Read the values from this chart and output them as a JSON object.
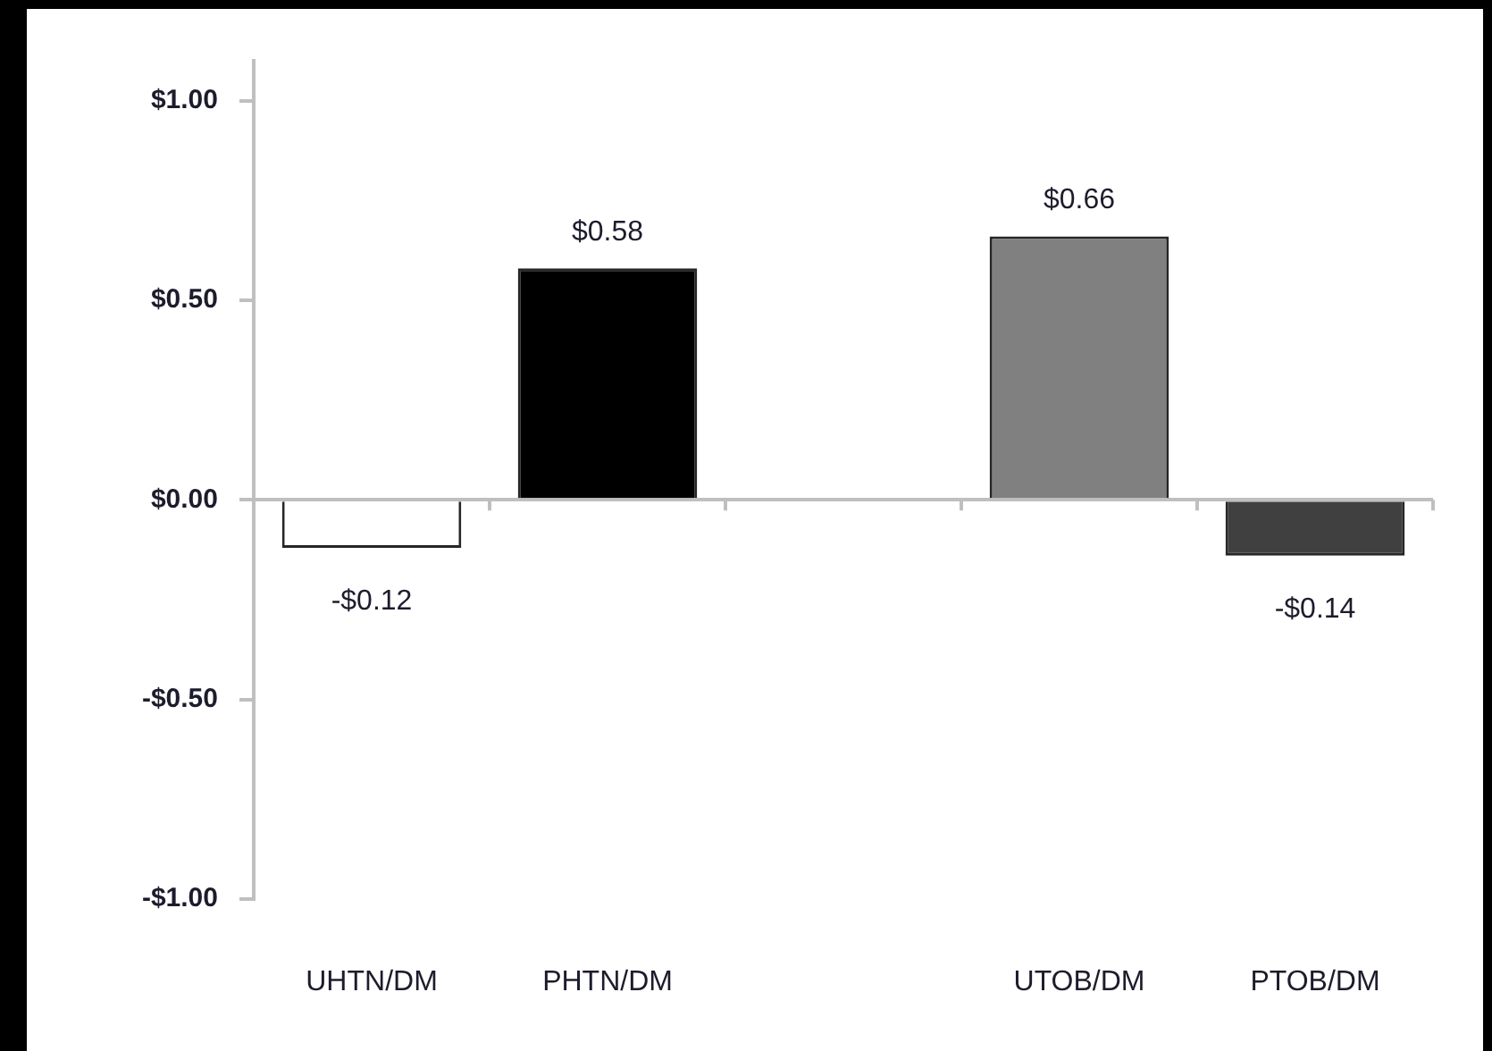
{
  "chart_data": {
    "type": "bar",
    "categories": [
      "UHTN/DM",
      "PHTN/DM",
      null,
      "UTOB/DM",
      "PTOB/DM"
    ],
    "values": [
      -0.12,
      0.58,
      null,
      0.66,
      -0.14
    ],
    "colors": [
      "#ffffff",
      "#000000",
      null,
      "#808080",
      "#404040"
    ],
    "value_labels": [
      "-$0.12",
      "$0.58",
      null,
      "$0.66",
      "-$0.14"
    ],
    "ylim": [
      -1,
      1.1
    ],
    "yticks": [
      {
        "value": -1,
        "label": "-$1.00"
      },
      {
        "value": -0.5,
        "label": "-$0.50"
      },
      {
        "value": 0,
        "label": "$0.00"
      },
      {
        "value": 0.5,
        "label": "$0.50"
      },
      {
        "value": 1,
        "label": "$1.00"
      }
    ]
  }
}
